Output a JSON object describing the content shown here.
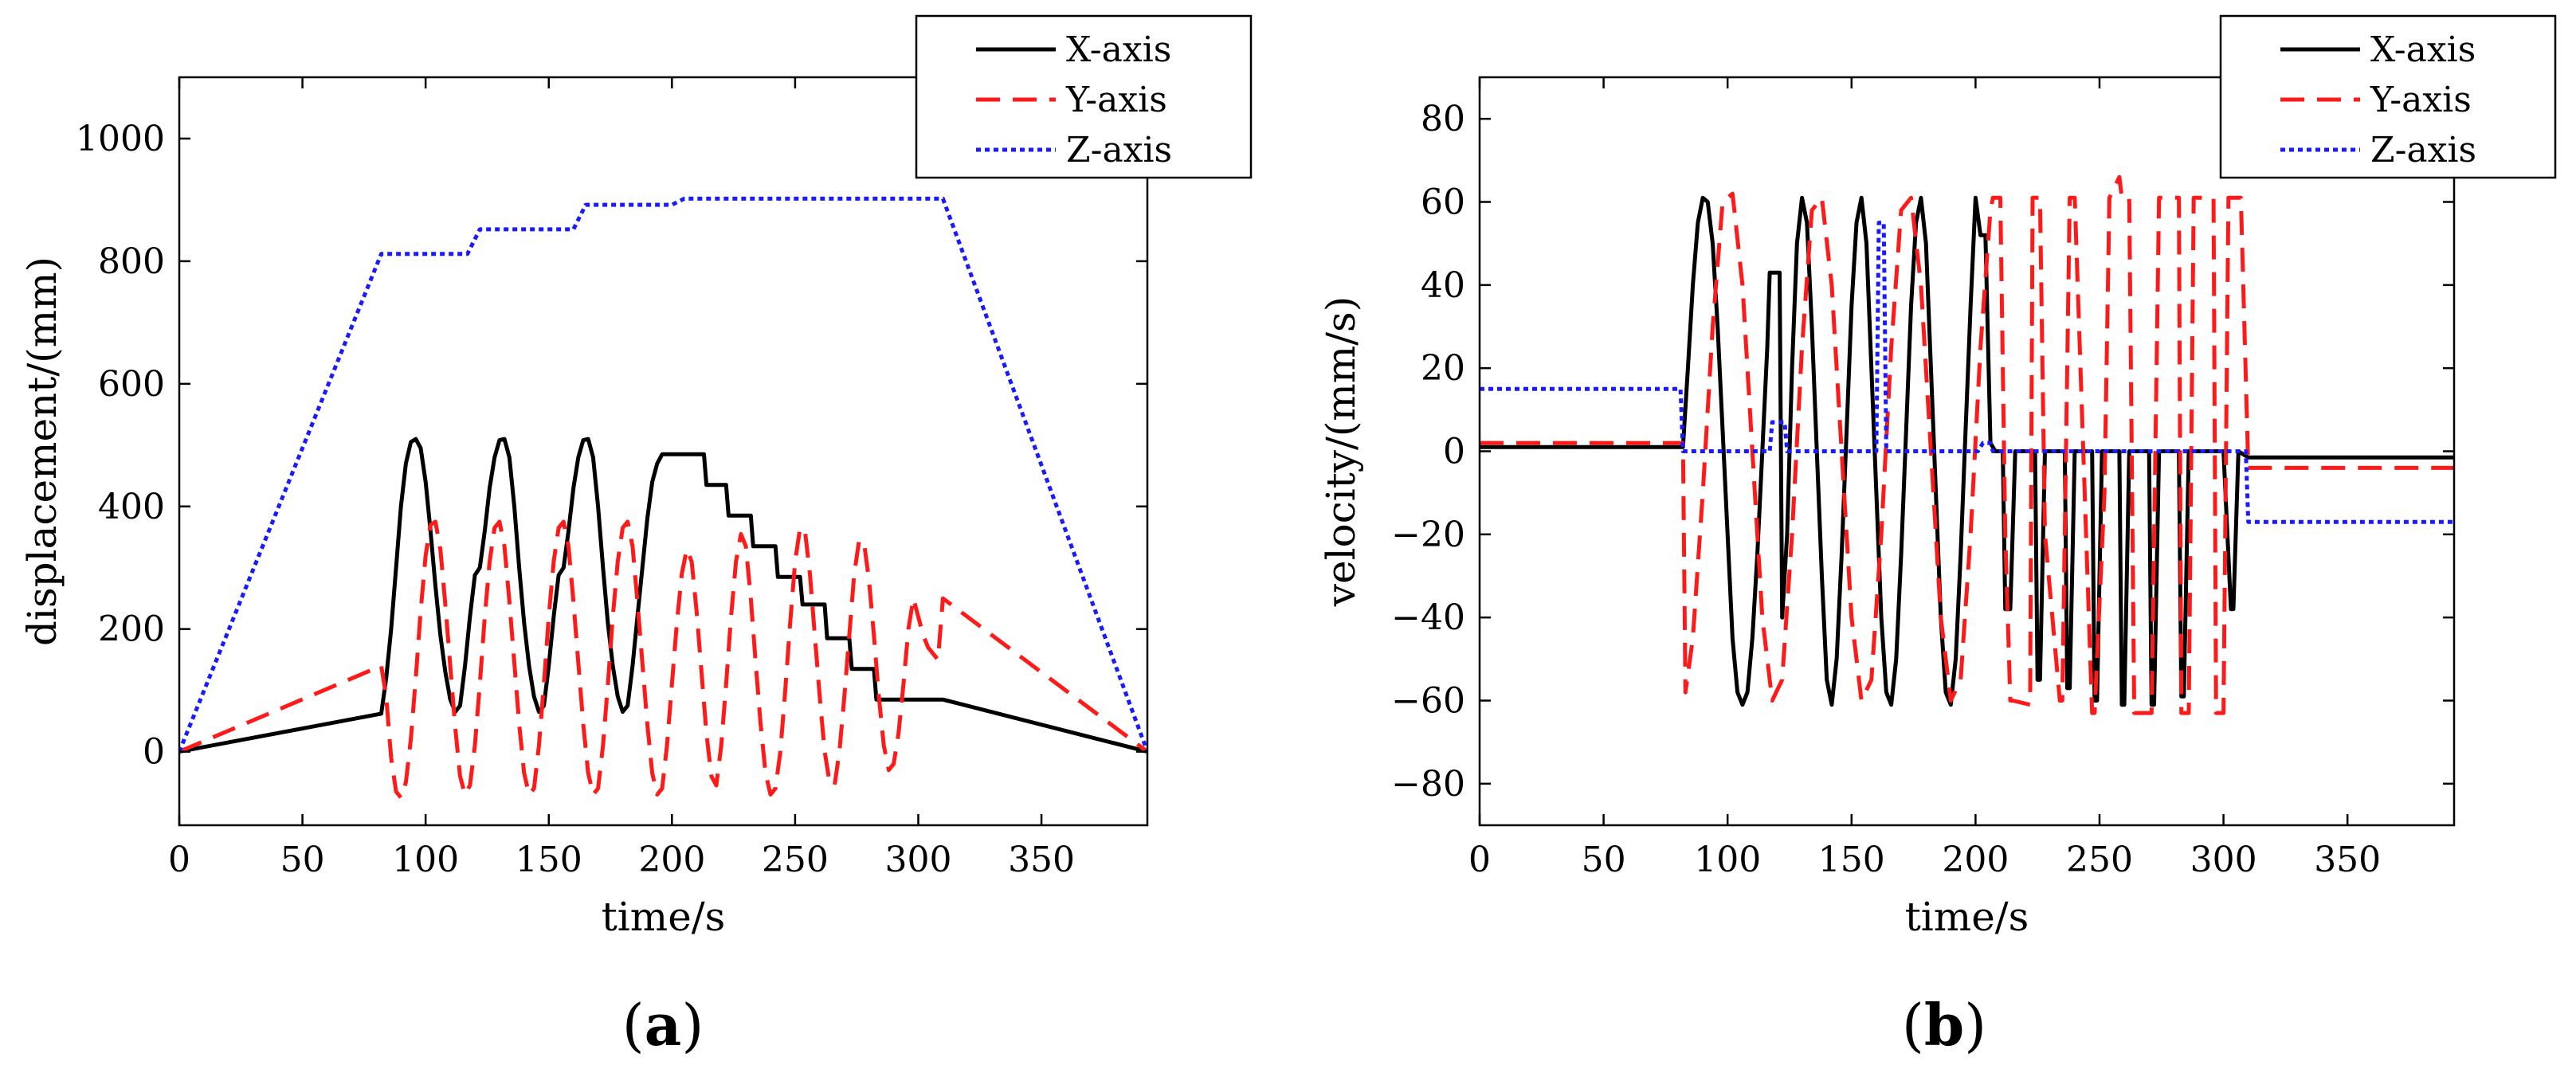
{
  "chart_data": [
    {
      "type": "line",
      "panel_label": {
        "open": "(",
        "letter": "a",
        "close": ")"
      },
      "xlabel": "time/s",
      "ylabel": "displacement/(mm)",
      "xlim": [
        0,
        393
      ],
      "ylim": [
        -120,
        1100
      ],
      "xticks": [
        0,
        50,
        100,
        150,
        200,
        250,
        300,
        350
      ],
      "yticks": [
        0,
        200,
        400,
        600,
        800,
        1000
      ],
      "legend": "top-right",
      "series": [
        {
          "name": "X-axis",
          "color": "#000000",
          "dash": "solid",
          "x": [
            0,
            82,
            84,
            86,
            88,
            90,
            92,
            94,
            96,
            98,
            100,
            102,
            104,
            106,
            108,
            110,
            112,
            114,
            116,
            118,
            120,
            122,
            124,
            126,
            128,
            130,
            132,
            134,
            136,
            138,
            140,
            142,
            144,
            146,
            148,
            150,
            152,
            154,
            156,
            158,
            160,
            162,
            164,
            166,
            168,
            170,
            172,
            174,
            176,
            178,
            180,
            182,
            184,
            186,
            188,
            190,
            192,
            194,
            196,
            198,
            200,
            202,
            204,
            206,
            207,
            210,
            213,
            214,
            222,
            223,
            232,
            233,
            242,
            243,
            252,
            253,
            262,
            263,
            272,
            273,
            282,
            283,
            292,
            293,
            302,
            303,
            310,
            393
          ],
          "y": [
            0,
            62,
            120,
            200,
            300,
            400,
            470,
            505,
            510,
            495,
            440,
            360,
            270,
            190,
            130,
            85,
            65,
            75,
            140,
            220,
            288,
            300,
            360,
            430,
            480,
            508,
            510,
            480,
            400,
            300,
            210,
            140,
            90,
            65,
            75,
            140,
            220,
            288,
            300,
            360,
            430,
            480,
            508,
            510,
            480,
            400,
            300,
            210,
            140,
            90,
            65,
            75,
            140,
            220,
            300,
            380,
            440,
            470,
            485,
            485,
            485,
            485,
            485,
            485,
            485,
            485,
            485,
            435,
            435,
            385,
            385,
            335,
            335,
            285,
            285,
            240,
            240,
            185,
            185,
            135,
            135,
            85,
            85,
            85,
            85,
            85,
            85,
            0
          ]
        },
        {
          "name": "Y-axis",
          "color": "#ff1a1a",
          "dash": "dashed",
          "x": [
            0,
            82,
            84,
            86,
            88,
            90,
            92,
            94,
            96,
            98,
            100,
            102,
            104,
            106,
            108,
            110,
            112,
            114,
            116,
            118,
            120,
            122,
            124,
            126,
            128,
            130,
            132,
            134,
            136,
            138,
            140,
            142,
            144,
            146,
            148,
            150,
            152,
            154,
            156,
            158,
            160,
            162,
            164,
            166,
            168,
            170,
            172,
            174,
            176,
            178,
            180,
            182,
            184,
            186,
            188,
            190,
            192,
            194,
            196,
            198,
            200,
            202,
            204,
            206,
            208,
            210,
            212,
            214,
            216,
            218,
            220,
            222,
            224,
            226,
            228,
            230,
            232,
            234,
            236,
            238,
            240,
            242,
            244,
            246,
            248,
            250,
            252,
            254,
            256,
            258,
            260,
            262,
            264,
            266,
            268,
            270,
            272,
            274,
            276,
            278,
            280,
            282,
            284,
            286,
            288,
            290,
            292,
            294,
            296,
            298,
            300,
            302,
            304,
            306,
            308,
            310,
            393
          ],
          "y": [
            0,
            140,
            90,
            -10,
            -65,
            -75,
            -50,
            20,
            120,
            230,
            320,
            370,
            375,
            330,
            240,
            140,
            40,
            -40,
            -70,
            -55,
            10,
            110,
            220,
            310,
            365,
            375,
            335,
            245,
            145,
            45,
            -35,
            -70,
            -60,
            10,
            110,
            220,
            310,
            365,
            375,
            335,
            245,
            145,
            45,
            -35,
            -70,
            -60,
            10,
            110,
            220,
            310,
            365,
            375,
            335,
            245,
            145,
            45,
            -35,
            -70,
            -60,
            10,
            110,
            210,
            290,
            330,
            310,
            230,
            130,
            30,
            -40,
            -55,
            10,
            110,
            220,
            310,
            355,
            335,
            250,
            145,
            45,
            -35,
            -70,
            -60,
            0,
            100,
            210,
            310,
            365,
            360,
            290,
            190,
            90,
            0,
            -50,
            -55,
            0,
            90,
            190,
            290,
            345,
            340,
            280,
            190,
            90,
            10,
            -30,
            -20,
            30,
            110,
            200,
            250,
            220,
            190,
            170,
            160,
            150,
            250,
            0
          ]
        },
        {
          "name": "Z-axis",
          "color": "#1a1aff",
          "dash": "dotted",
          "x": [
            0,
            82,
            117,
            122,
            160,
            165,
            200,
            205,
            310,
            393
          ],
          "y": [
            0,
            812,
            812,
            852,
            852,
            892,
            892,
            902,
            902,
            0
          ]
        }
      ]
    },
    {
      "type": "line",
      "panel_label": {
        "open": "(",
        "letter": "b",
        "close": ")"
      },
      "xlabel": "time/s",
      "ylabel": "velocity/(mm/s)",
      "xlim": [
        0,
        393
      ],
      "ylim": [
        -90,
        90
      ],
      "xticks": [
        0,
        50,
        100,
        150,
        200,
        250,
        300,
        350
      ],
      "yticks": [
        -80,
        -60,
        -40,
        -20,
        0,
        20,
        40,
        60,
        80
      ],
      "ytick_labels": [
        "−80",
        "−60",
        "−40",
        "−20",
        "0",
        "20",
        "40",
        "60",
        "80"
      ],
      "legend": "top-right",
      "series": [
        {
          "name": "X-axis",
          "color": "#000000",
          "dash": "solid",
          "x": [
            0,
            82,
            84,
            86,
            88,
            90,
            92,
            94,
            96,
            98,
            100,
            102,
            104,
            106,
            108,
            110,
            112,
            114,
            116,
            117,
            118,
            121,
            122,
            124,
            126,
            128,
            130,
            132,
            134,
            136,
            138,
            140,
            142,
            144,
            146,
            148,
            150,
            152,
            154,
            156,
            158,
            160,
            162,
            164,
            166,
            168,
            170,
            172,
            174,
            176,
            178,
            180,
            182,
            184,
            186,
            188,
            190,
            192,
            194,
            196,
            198,
            200,
            202,
            204,
            206,
            208,
            211,
            212,
            214,
            216,
            224,
            225,
            226,
            228,
            236,
            237,
            238,
            240,
            247,
            248,
            249,
            251,
            258,
            259,
            260,
            262,
            270,
            271,
            272,
            274,
            282,
            283,
            284,
            286,
            300,
            303,
            304,
            306,
            310,
            393
          ],
          "y": [
            1,
            1,
            20,
            40,
            55,
            61,
            60,
            50,
            30,
            5,
            -20,
            -45,
            -58,
            -61,
            -58,
            -45,
            -25,
            0,
            25,
            43,
            43,
            43,
            -40,
            -20,
            20,
            50,
            61,
            55,
            30,
            0,
            -30,
            -55,
            -61,
            -50,
            -25,
            5,
            35,
            55,
            61,
            50,
            20,
            -10,
            -40,
            -58,
            -61,
            -50,
            -25,
            5,
            35,
            55,
            61,
            50,
            20,
            -10,
            -40,
            -58,
            -61,
            -50,
            -25,
            5,
            35,
            61,
            52,
            52,
            2,
            0,
            0,
            -38,
            -38,
            0,
            0,
            -55,
            -55,
            0,
            0,
            -57,
            -57,
            0,
            0,
            -60,
            -60,
            0,
            0,
            -61,
            -61,
            0,
            0,
            -61,
            -61,
            0,
            0,
            -59,
            -59,
            0,
            0,
            -38,
            -38,
            0,
            -1.5,
            -1.5
          ]
        },
        {
          "name": "Y-axis",
          "color": "#ff1a1a",
          "dash": "dashed",
          "x": [
            0,
            82,
            83,
            86,
            90,
            94,
            98,
            102,
            106,
            110,
            114,
            118,
            122,
            126,
            130,
            134,
            138,
            142,
            146,
            150,
            154,
            158,
            162,
            166,
            170,
            174,
            178,
            182,
            186,
            190,
            194,
            198,
            202,
            206,
            207,
            210,
            212,
            214,
            215,
            222,
            223,
            226,
            228,
            234,
            235,
            238,
            240,
            247,
            248,
            252,
            254,
            258,
            259,
            262,
            264,
            268,
            271,
            274,
            276,
            282,
            283,
            286,
            288,
            296,
            297,
            300,
            302,
            306,
            307,
            310,
            393
          ],
          "y": [
            2,
            2,
            -58,
            -45,
            -10,
            30,
            60,
            62,
            40,
            0,
            -40,
            -60,
            -55,
            -20,
            25,
            58,
            61,
            40,
            0,
            -40,
            -60,
            -55,
            -20,
            25,
            58,
            61,
            40,
            0,
            -40,
            -60,
            -55,
            -20,
            25,
            58,
            61,
            61,
            -20,
            -60,
            -60,
            -61,
            61,
            61,
            -20,
            -60,
            -60,
            61,
            61,
            -63,
            -63,
            -10,
            61,
            66,
            61,
            61,
            -63,
            -63,
            -63,
            61,
            61,
            61,
            -63,
            -63,
            61,
            61,
            -63,
            -63,
            61,
            61,
            61,
            -4,
            -4
          ]
        },
        {
          "name": "Z-axis",
          "color": "#1a1aff",
          "dash": "dotted",
          "x": [
            0,
            81,
            82,
            117,
            118,
            123,
            124,
            160,
            161,
            163,
            164,
            201,
            203,
            206,
            207,
            309,
            310,
            393
          ],
          "y": [
            15,
            15,
            0,
            0,
            7,
            7,
            0,
            0,
            55,
            55,
            0,
            0,
            2,
            2,
            0,
            0,
            -17,
            -17
          ]
        }
      ]
    }
  ]
}
